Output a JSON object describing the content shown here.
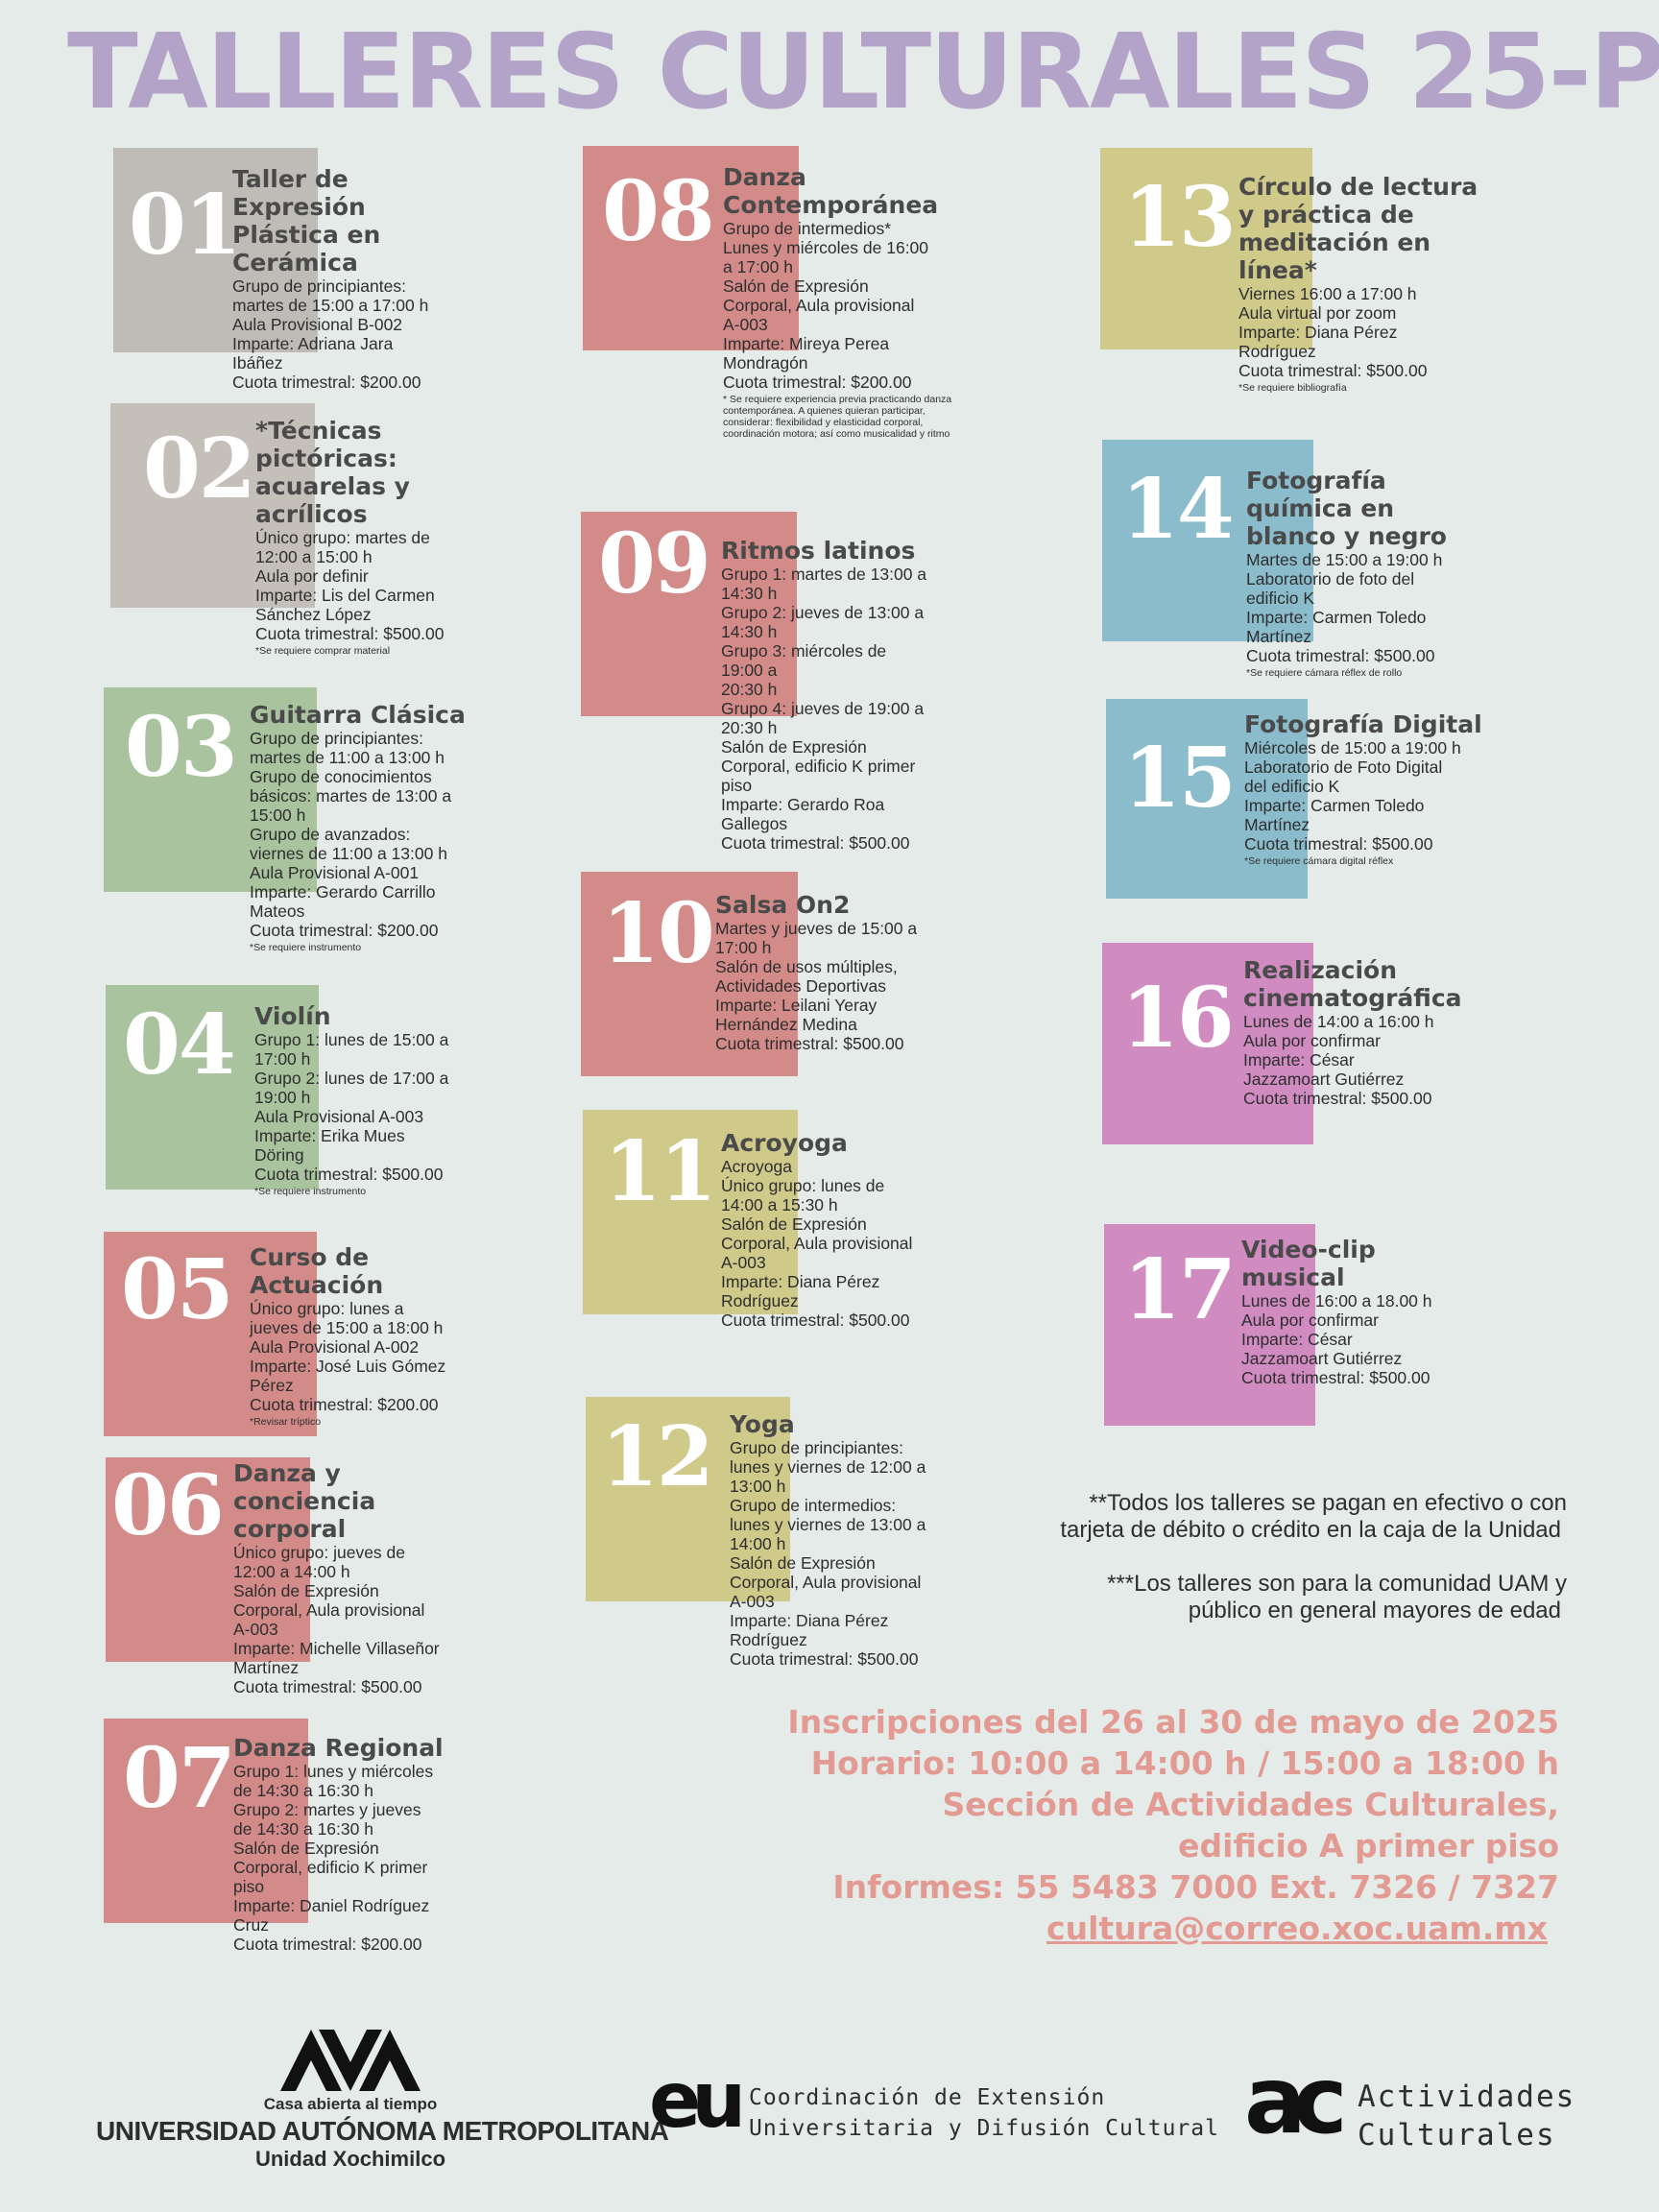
{
  "title": "TALLERES CULTURALES 25-P",
  "workshops": [
    {
      "num": "01",
      "title": "Taller de Expresión Plástica en Cerámica",
      "lines": [
        "Grupo de principiantes:",
        "martes de 15:00 a 17:00 h",
        "Aula Provisional B-002",
        "Imparte: Adriana Jara",
        "Ibáñez",
        "Cuota trimestral: $200.00"
      ],
      "note": ""
    },
    {
      "num": "02",
      "title": "*Técnicas pictóricas: acuarelas y acrílicos",
      "lines": [
        "Único grupo: martes de",
        "12:00 a 15:00 h",
        "Aula por definir",
        "Imparte: Lis del Carmen",
        "Sánchez López",
        "Cuota trimestral: $500.00"
      ],
      "note": "*Se requiere comprar material"
    },
    {
      "num": "03",
      "title": "Guitarra Clásica",
      "lines": [
        "Grupo de principiantes:",
        "martes de 11:00 a 13:00 h",
        "Grupo de conocimientos",
        "básicos: martes de 13:00 a",
        "15:00 h",
        "Grupo de avanzados:",
        "viernes de 11:00 a 13:00 h",
        "Aula Provisional A-001",
        "Imparte: Gerardo Carrillo",
        "Mateos",
        "Cuota trimestral: $200.00"
      ],
      "note": "*Se requiere instrumento"
    },
    {
      "num": "04",
      "title": "Violín",
      "lines": [
        "Grupo 1: lunes de 15:00 a",
        "17:00 h",
        "Grupo 2: lunes de 17:00 a",
        "19:00 h",
        "Aula Provisional A-003",
        "Imparte: Erika Mues",
        "Döring",
        "Cuota trimestral: $500.00"
      ],
      "note": "*Se requiere instrumento"
    },
    {
      "num": "05",
      "title": "Curso de Actuación",
      "lines": [
        "Único grupo: lunes a",
        "jueves de 15:00 a 18:00 h",
        "Aula Provisional A-002",
        "Imparte: José Luis Gómez",
        "Pérez",
        "Cuota trimestral: $200.00"
      ],
      "note": "*Revisar tríptico"
    },
    {
      "num": "06",
      "title": "Danza y conciencia corporal",
      "lines": [
        "Único grupo: jueves de",
        "12:00 a 14:00 h",
        "Salón de Expresión",
        "Corporal, Aula provisional",
        "A-003",
        "Imparte: Michelle Villaseñor",
        "Martínez",
        "Cuota trimestral: $500.00"
      ],
      "note": ""
    },
    {
      "num": "07",
      "title": "Danza Regional",
      "lines": [
        "Grupo 1: lunes y miércoles",
        "de 14:30 a 16:30 h",
        "Grupo 2: martes y jueves",
        "de 14:30 a 16:30 h",
        "Salón de Expresión",
        "Corporal, edificio K primer",
        "piso",
        "Imparte: Daniel Rodríguez",
        "Cruz",
        "Cuota trimestral: $200.00"
      ],
      "note": ""
    },
    {
      "num": "08",
      "title": "Danza Contemporánea",
      "lines": [
        "Grupo de intermedios*",
        "Lunes y miércoles de 16:00",
        "a 17:00 h",
        "Salón de Expresión",
        "Corporal, Aula provisional",
        "A-003",
        "Imparte: Mireya Perea",
        "Mondragón",
        "Cuota trimestral: $200.00"
      ],
      "note": "* Se requiere experiencia previa practicando danza contemporánea. A quienes quieran participar, considerar: flexibilidad y elasticidad corporal, coordinación motora; así como musicalidad y ritmo"
    },
    {
      "num": "09",
      "title": "Ritmos latinos",
      "lines": [
        "Grupo 1: martes de 13:00 a",
        "14:30 h",
        "Grupo 2: jueves de 13:00 a",
        "14:30 h",
        "Grupo 3: miércoles de",
        "19:00 a",
        "20:30 h",
        "Grupo 4: jueves de 19:00 a",
        "20:30 h",
        "Salón de Expresión",
        "Corporal, edificio K primer",
        "piso",
        "Imparte: Gerardo Roa",
        "Gallegos",
        "Cuota trimestral: $500.00"
      ],
      "note": ""
    },
    {
      "num": "10",
      "title": "Salsa On2",
      "lines": [
        "Martes y jueves de 15:00 a",
        "17:00 h",
        "Salón de usos múltiples,",
        "Actividades Deportivas",
        "Imparte: Leilani Yeray",
        "Hernández Medina",
        "Cuota trimestral: $500.00"
      ],
      "note": ""
    },
    {
      "num": "11",
      "title": "Acroyoga",
      "lines": [
        "Acroyoga",
        "Único grupo: lunes de",
        "14:00 a 15:30 h",
        "Salón de Expresión",
        "Corporal, Aula provisional",
        "A-003",
        "Imparte: Diana Pérez",
        "Rodríguez",
        "Cuota trimestral: $500.00"
      ],
      "note": ""
    },
    {
      "num": "12",
      "title": "Yoga",
      "lines": [
        "Grupo de principiantes:",
        "lunes y viernes de 12:00 a",
        "13:00 h",
        "Grupo de intermedios:",
        "lunes y viernes de 13:00 a",
        "14:00 h",
        "Salón de Expresión",
        "Corporal, Aula provisional",
        "A-003",
        "Imparte: Diana Pérez",
        "Rodríguez",
        "Cuota trimestral: $500.00"
      ],
      "note": ""
    },
    {
      "num": "13",
      "title": "Círculo de lectura y práctica de meditación en línea*",
      "lines": [
        "Viernes 16:00 a 17:00 h",
        "Aula virtual por zoom",
        "Imparte: Diana Pérez",
        "Rodríguez",
        "Cuota trimestral:  $500.00"
      ],
      "note": "*Se requiere bibliografía"
    },
    {
      "num": "14",
      "title": "Fotografía química en blanco y negro",
      "lines": [
        "Martes de 15:00 a 19:00 h",
        "Laboratorio de foto del",
        "edificio K",
        "Imparte: Carmen Toledo",
        "Martínez",
        "Cuota trimestral: $500.00"
      ],
      "note": "*Se requiere cámara réflex de rollo"
    },
    {
      "num": "15",
      "title": "Fotografía Digital",
      "lines": [
        "Miércoles de 15:00 a 19:00 h",
        "Laboratorio de Foto Digital",
        "del edificio K",
        "Imparte: Carmen Toledo",
        "Martínez",
        "Cuota trimestral: $500.00"
      ],
      "note": "*Se requiere cámara digital réflex"
    },
    {
      "num": "16",
      "title": "Realización cinematográfica",
      "lines": [
        "Lunes de 14:00 a 16:00 h",
        "Aula por confirmar",
        "Imparte: César",
        "Jazzamoart Gutiérrez",
        "Cuota trimestral: $500.00"
      ],
      "note": ""
    },
    {
      "num": "17",
      "title": "Video-clip musical",
      "lines": [
        "Lunes de 16:00 a 18.00 h",
        "Aula por confirmar",
        "Imparte: César",
        "Jazzamoart Gutiérrez",
        "Cuota trimestral: $500.00"
      ],
      "note": ""
    }
  ],
  "notes": {
    "payment": [
      "**Todos los talleres se pagan en efectivo o con",
      "tarjeta de débito o crédito en la caja de la Unidad"
    ],
    "audience": [
      "***Los talleres son para la comunidad UAM y",
      "público en general mayores de edad"
    ]
  },
  "registration": {
    "dates": "Inscripciones del 26 al 30 de mayo de 2025",
    "hours": "Horario: 10:00 a 14:00 h / 15:00 a 18:00 h",
    "place1": "Sección de Actividades Culturales,",
    "place2": "edificio A primer piso",
    "phone": "Informes: 55 5483 7000 Ext. 7326 / 7327",
    "email": "cultura@correo.xoc.uam.mx"
  },
  "footer": {
    "uam": {
      "motto": "Casa abierta al tiempo",
      "name": "UNIVERSIDAD AUTÓNOMA METROPOLITANA",
      "unit": "Unidad Xochimilco"
    },
    "cedu": {
      "mark": "eu",
      "line1": "Coordinación de Extensión",
      "line2": "Universitaria y Difusión Cultural"
    },
    "ac": {
      "mark": "ac",
      "line1": "Actividades",
      "line2": "Culturales"
    }
  },
  "colors": {
    "title": "#b3a3c8",
    "gray": "#bfbcb7",
    "green": "#a9c39f",
    "red": "#d38b89",
    "olive": "#cfc98a",
    "blue": "#8bbccc",
    "pink": "#d08bc1",
    "accent": "#e39a92"
  }
}
